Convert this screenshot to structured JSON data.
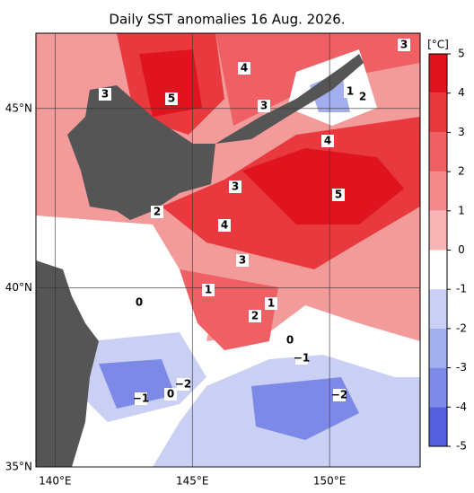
{
  "title": "Daily SST anomalies 16 Aug. 2026.",
  "map": {
    "xlim": [
      139.3,
      153.3
    ],
    "ylim": [
      35,
      47.1
    ],
    "xticks": [
      {
        "value": 140,
        "label": "140°E"
      },
      {
        "value": 145,
        "label": "145°E"
      },
      {
        "value": 150,
        "label": "150°E"
      }
    ],
    "yticks": [
      {
        "value": 35,
        "label": "35°N"
      },
      {
        "value": 40,
        "label": "40°N"
      },
      {
        "value": 45,
        "label": "45°N"
      }
    ],
    "contour_labels": [
      "3",
      "4",
      "3",
      "5",
      "3",
      "1",
      "2",
      "4",
      "3",
      "5",
      "2",
      "4",
      "3",
      "1",
      "0",
      "1",
      "2",
      "0",
      "−1",
      "−2",
      "0",
      "−1",
      "−2"
    ]
  },
  "colorbar": {
    "unit": "[°C]",
    "lim": [
      -5,
      5
    ],
    "ticks": [
      5,
      4,
      3,
      2,
      1,
      0,
      -1,
      -2,
      -3,
      -4,
      -5
    ],
    "colors": [
      "#e0141e",
      "#e8393e",
      "#ee6064",
      "#f48a8b",
      "#f9b5b5",
      "#ffffff",
      "#c9d0f4",
      "#a3aeee",
      "#7c89e6",
      "#5560de",
      "#2a30d8"
    ]
  }
}
